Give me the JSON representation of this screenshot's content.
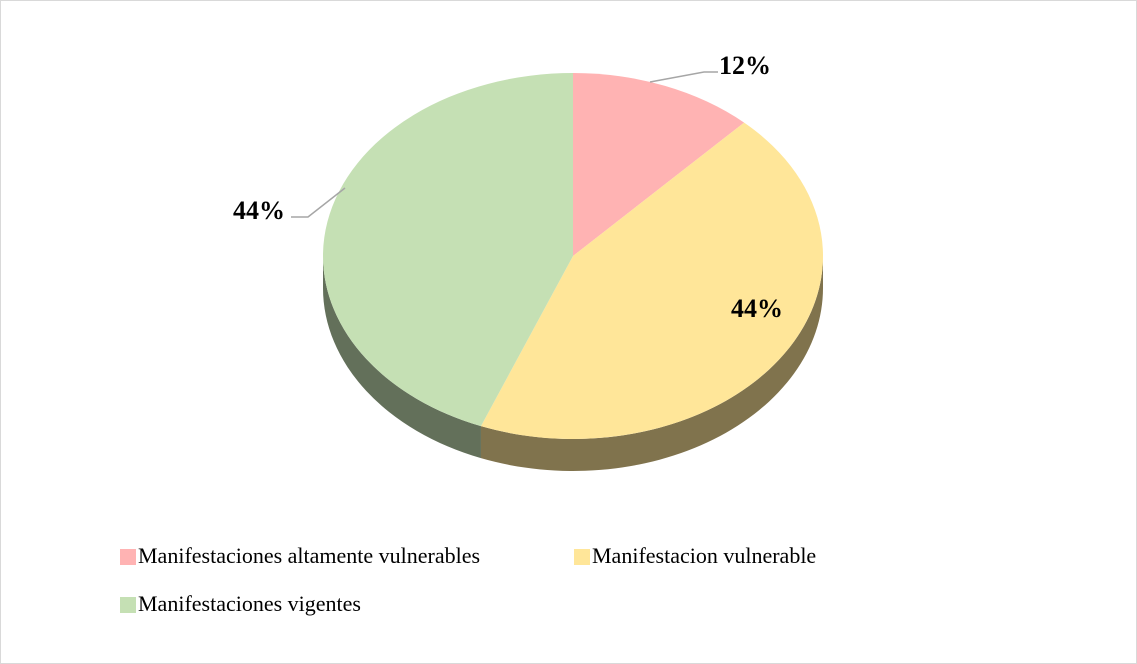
{
  "chart_data": {
    "type": "pie",
    "categories": [
      "Manifestaciones altamente vulnerables",
      "Manifestacion vulnerable",
      "Manifestaciones vigentes"
    ],
    "values": [
      12,
      44,
      44
    ],
    "value_labels": [
      "12%",
      "44%",
      "44%"
    ],
    "colors": [
      "#ffb3b3",
      "#ffe699",
      "#c5e0b4"
    ],
    "legend": "bottom"
  }
}
